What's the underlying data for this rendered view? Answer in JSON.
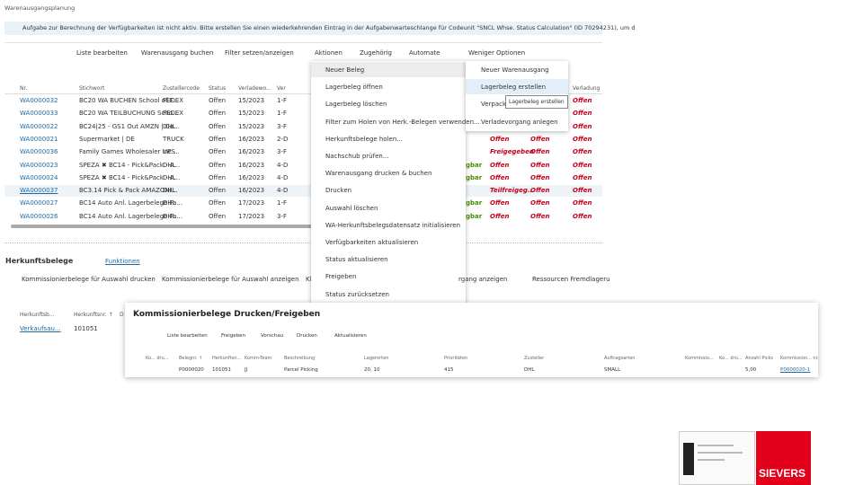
{
  "page_title": "Warenausgangsplanung",
  "notification": "Aufgabe zur Berechnung der Verfügbarkeiten ist nicht aktiv. Bitte erstellen Sie einen wiederkehrenden Eintrag in der Aufgabenwarteschlange für Codeunit \"SNCL Whse. Status Calculation\" (ID 70294231), um d",
  "toolbar": [
    "Liste bearbeiten",
    "Warenausgang buchen",
    "Filter setzen/anzeigen",
    "Aktionen",
    "Zugehörig",
    "Automate",
    "Weniger Optionen"
  ],
  "table": {
    "columns": [
      "Nr.",
      "Stichwort",
      "Zustellercode",
      "Status",
      "Verladewo...",
      "Ver",
      null,
      null,
      null,
      "Verladung"
    ],
    "rows": [
      [
        "WA0000032",
        "BC20 WA BUCHEN School of F...",
        "FEDEX",
        "Offen",
        "15/2023",
        "1-F",
        null,
        null,
        null,
        "Offen"
      ],
      [
        "WA0000033",
        "BC20 WA TEILBUCHUNG Scho...",
        "FEDEX",
        "Offen",
        "15/2023",
        "1-F",
        null,
        null,
        null,
        "Offen"
      ],
      [
        "WA0000022",
        "BC24|25 - GS1 Out AMZN | Ca...",
        "DHL",
        "Offen",
        "15/2023",
        "3-F",
        null,
        null,
        null,
        "Offen"
      ],
      [
        "WA0000021",
        "Supermarket | DE",
        "TRUCK",
        "Offen",
        "16/2023",
        "2-D",
        null,
        "Offen",
        "Offen",
        "Offen"
      ],
      [
        "WA0000036",
        "Family Games Wholesaler Inc ...",
        "UPS",
        "Offen",
        "16/2023",
        "3-F",
        null,
        "Freigegeben",
        "Offen",
        "Offen"
      ],
      [
        "WA0000023",
        "SPEZA ✖ BC14 - Pick&Pack - A...",
        "DHL",
        "Offen",
        "16/2023",
        "4-D",
        "gbar",
        "Offen",
        "Offen",
        "Offen"
      ],
      [
        "WA0000024",
        "SPEZA ✖ BC14 - Pick&Pack - A...",
        "DHL",
        "Offen",
        "16/2023",
        "4-D",
        "gbar",
        "Offen",
        "Offen",
        "Offen"
      ],
      [
        "WA0000037",
        "BC3.14 Pick & Pack AMAZONI...",
        "DHL",
        "Offen",
        "16/2023",
        "4-D",
        null,
        "Teilfreigeg...",
        "Offen",
        "Offen"
      ],
      [
        "WA0000027",
        "BC14 Auto Anl. Lagerbelege Fa...",
        "DHL",
        "Offen",
        "17/2023",
        "1-F",
        "gbar",
        "Offen",
        "Offen",
        "Offen"
      ],
      [
        "WA0000026",
        "BC14 Auto Anl. Lagerbelege Fa...",
        "DHL",
        "Offen",
        "17/2023",
        "3-F",
        "gbar",
        "Offen",
        "Offen",
        "Offen"
      ]
    ]
  },
  "actions_menu": [
    "Neuer Beleg",
    "Lagerbeleg öffnen",
    "Lagerbeleg löschen",
    "Filter zum Holen von Herk.-Belegen verwenden...",
    "Herkunftsbelege holen...",
    "Nachschub prüfen...",
    "Warenausgang drucken & buchen",
    "Drucken",
    "Auswahl löschen",
    "WA-Herkunftsbelegsdatensatz initialisieren",
    "Verfügbarkeiten aktualisieren",
    "Status aktualisieren",
    "Freigeben",
    "Status zurücksetzen"
  ],
  "submenu": [
    "Neuer Warenausgang",
    "Lagerbeleg erstellen",
    "Verpack",
    "Verladevorgang anlegen"
  ],
  "tooltip": "Lagerbeleg erstellen",
  "lower": {
    "title": "Herkunftsbelege",
    "tab": "Funktionen",
    "actions": [
      "Kommissionierbelege für Auswahl drucken",
      "Kommissionierbelege für Auswahl anzeigen",
      "Kl",
      "rgang anzeigen",
      "Ressourcen Fremdlageru"
    ],
    "columns": [
      "Herkunftsb...",
      "Herkunftsnr. ↑",
      "D"
    ],
    "row": [
      "Verkaufsau...",
      "101051"
    ]
  },
  "dialog": {
    "title": "Kommissionierbelege Drucken/Freigeben",
    "toolbar": [
      "Liste bearbeiten",
      "Freigeben",
      "Vorschau",
      "Drucken",
      "Aktualisieren"
    ],
    "columns": [
      "Ko... dru...",
      "Belegnr. ↑",
      "Herkunftsn...",
      "Komm-Team",
      "Beschreibung",
      "Lagerorten",
      "Prioritäten",
      "Zusteller",
      "Auftragsarten",
      "Kommissio...",
      "Ko... dru...",
      "Anzahl Picks",
      "Kommission... nr."
    ],
    "row": [
      null,
      "P0000020",
      "101051",
      "JJ",
      "Parcel Picking",
      "20, 10",
      "415",
      "DHL",
      "SMALL",
      null,
      null,
      "5,00",
      "P0000020-1"
    ]
  },
  "logo": "SIEVERS"
}
